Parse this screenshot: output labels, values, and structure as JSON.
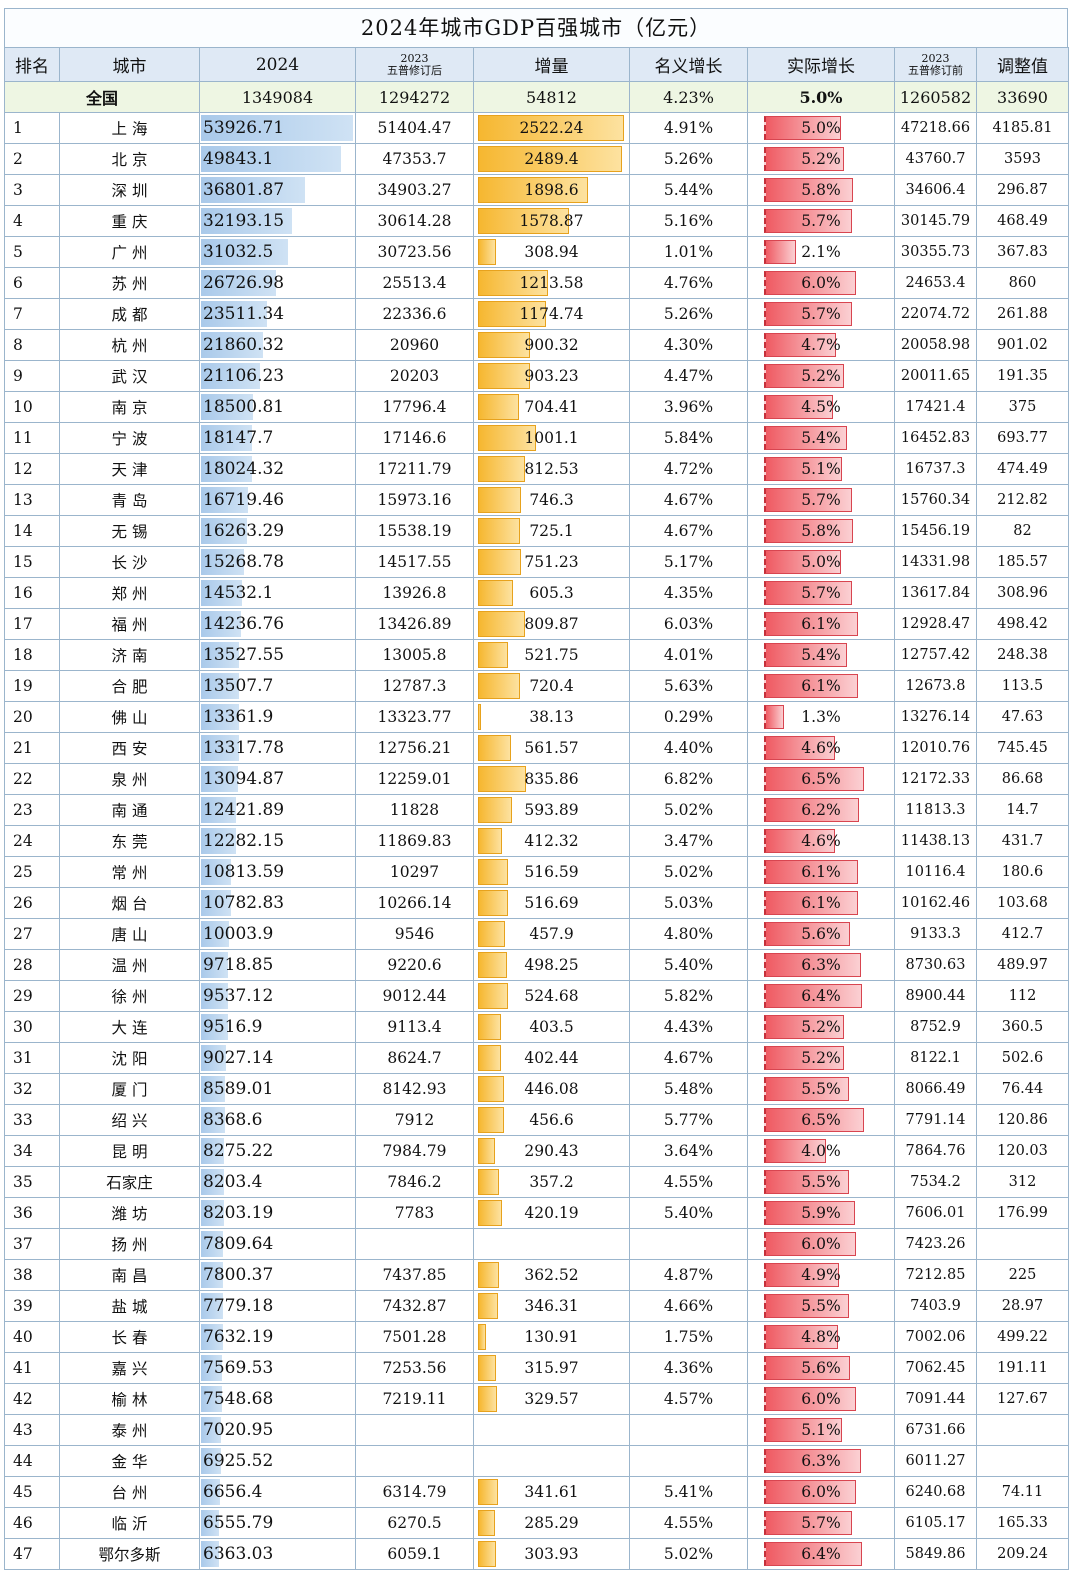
{
  "title": "2024年城市GDP百强城市（亿元）",
  "headers": {
    "rank": "排名",
    "city": "城市",
    "gdp2024": "2024",
    "gdp2023_year": "2023",
    "gdp2023_note": "五普修订后",
    "increase": "增量",
    "nominal": "名义增长",
    "real": "实际增长",
    "pre_year": "2023",
    "pre_note": "五普修订前",
    "adjust": "调整值"
  },
  "total": {
    "label": "全国",
    "gdp2024": "1349084",
    "gdp2023": "1294272",
    "increase": "54812",
    "nominal": "4.23%",
    "real": "5.0%",
    "pre": "1260582",
    "adjust": "33690"
  },
  "colors": {
    "header_bg": "#dfe9f5",
    "total_bg": "#eef6e3",
    "gdp_bar": "#a9c9ea",
    "inc_bar": "#f6b730",
    "real_bar": "#ef5a62",
    "grid": "#9bb5cc"
  },
  "rows": [
    {
      "rank": "1",
      "city": "上 海",
      "gdp2024": "53926.71",
      "gdp2023": "51404.47",
      "increase": "2522.24",
      "nominal": "4.91%",
      "real": "5.0%",
      "pre": "47218.66",
      "adjust": "4185.81"
    },
    {
      "rank": "2",
      "city": "北 京",
      "gdp2024": "49843.1",
      "gdp2023": "47353.7",
      "increase": "2489.4",
      "nominal": "5.26%",
      "real": "5.2%",
      "pre": "43760.7",
      "adjust": "3593"
    },
    {
      "rank": "3",
      "city": "深 圳",
      "gdp2024": "36801.87",
      "gdp2023": "34903.27",
      "increase": "1898.6",
      "nominal": "5.44%",
      "real": "5.8%",
      "pre": "34606.4",
      "adjust": "296.87"
    },
    {
      "rank": "4",
      "city": "重 庆",
      "gdp2024": "32193.15",
      "gdp2023": "30614.28",
      "increase": "1578.87",
      "nominal": "5.16%",
      "real": "5.7%",
      "pre": "30145.79",
      "adjust": "468.49"
    },
    {
      "rank": "5",
      "city": "广 州",
      "gdp2024": "31032.5",
      "gdp2023": "30723.56",
      "increase": "308.94",
      "nominal": "1.01%",
      "real": "2.1%",
      "pre": "30355.73",
      "adjust": "367.83"
    },
    {
      "rank": "6",
      "city": "苏 州",
      "gdp2024": "26726.98",
      "gdp2023": "25513.4",
      "increase": "1213.58",
      "nominal": "4.76%",
      "real": "6.0%",
      "pre": "24653.4",
      "adjust": "860"
    },
    {
      "rank": "7",
      "city": "成 都",
      "gdp2024": "23511.34",
      "gdp2023": "22336.6",
      "increase": "1174.74",
      "nominal": "5.26%",
      "real": "5.7%",
      "pre": "22074.72",
      "adjust": "261.88"
    },
    {
      "rank": "8",
      "city": "杭 州",
      "gdp2024": "21860.32",
      "gdp2023": "20960",
      "increase": "900.32",
      "nominal": "4.30%",
      "real": "4.7%",
      "pre": "20058.98",
      "adjust": "901.02"
    },
    {
      "rank": "9",
      "city": "武 汉",
      "gdp2024": "21106.23",
      "gdp2023": "20203",
      "increase": "903.23",
      "nominal": "4.47%",
      "real": "5.2%",
      "pre": "20011.65",
      "adjust": "191.35"
    },
    {
      "rank": "10",
      "city": "南 京",
      "gdp2024": "18500.81",
      "gdp2023": "17796.4",
      "increase": "704.41",
      "nominal": "3.96%",
      "real": "4.5%",
      "pre": "17421.4",
      "adjust": "375"
    },
    {
      "rank": "11",
      "city": "宁 波",
      "gdp2024": "18147.7",
      "gdp2023": "17146.6",
      "increase": "1001.1",
      "nominal": "5.84%",
      "real": "5.4%",
      "pre": "16452.83",
      "adjust": "693.77"
    },
    {
      "rank": "12",
      "city": "天 津",
      "gdp2024": "18024.32",
      "gdp2023": "17211.79",
      "increase": "812.53",
      "nominal": "4.72%",
      "real": "5.1%",
      "pre": "16737.3",
      "adjust": "474.49"
    },
    {
      "rank": "13",
      "city": "青 岛",
      "gdp2024": "16719.46",
      "gdp2023": "15973.16",
      "increase": "746.3",
      "nominal": "4.67%",
      "real": "5.7%",
      "pre": "15760.34",
      "adjust": "212.82"
    },
    {
      "rank": "14",
      "city": "无 锡",
      "gdp2024": "16263.29",
      "gdp2023": "15538.19",
      "increase": "725.1",
      "nominal": "4.67%",
      "real": "5.8%",
      "pre": "15456.19",
      "adjust": "82"
    },
    {
      "rank": "15",
      "city": "长 沙",
      "gdp2024": "15268.78",
      "gdp2023": "14517.55",
      "increase": "751.23",
      "nominal": "5.17%",
      "real": "5.0%",
      "pre": "14331.98",
      "adjust": "185.57"
    },
    {
      "rank": "16",
      "city": "郑 州",
      "gdp2024": "14532.1",
      "gdp2023": "13926.8",
      "increase": "605.3",
      "nominal": "4.35%",
      "real": "5.7%",
      "pre": "13617.84",
      "adjust": "308.96"
    },
    {
      "rank": "17",
      "city": "福 州",
      "gdp2024": "14236.76",
      "gdp2023": "13426.89",
      "increase": "809.87",
      "nominal": "6.03%",
      "real": "6.1%",
      "pre": "12928.47",
      "adjust": "498.42"
    },
    {
      "rank": "18",
      "city": "济 南",
      "gdp2024": "13527.55",
      "gdp2023": "13005.8",
      "increase": "521.75",
      "nominal": "4.01%",
      "real": "5.4%",
      "pre": "12757.42",
      "adjust": "248.38"
    },
    {
      "rank": "19",
      "city": "合 肥",
      "gdp2024": "13507.7",
      "gdp2023": "12787.3",
      "increase": "720.4",
      "nominal": "5.63%",
      "real": "6.1%",
      "pre": "12673.8",
      "adjust": "113.5"
    },
    {
      "rank": "20",
      "city": "佛 山",
      "gdp2024": "13361.9",
      "gdp2023": "13323.77",
      "increase": "38.13",
      "nominal": "0.29%",
      "real": "1.3%",
      "pre": "13276.14",
      "adjust": "47.63"
    },
    {
      "rank": "21",
      "city": "西 安",
      "gdp2024": "13317.78",
      "gdp2023": "12756.21",
      "increase": "561.57",
      "nominal": "4.40%",
      "real": "4.6%",
      "pre": "12010.76",
      "adjust": "745.45"
    },
    {
      "rank": "22",
      "city": "泉 州",
      "gdp2024": "13094.87",
      "gdp2023": "12259.01",
      "increase": "835.86",
      "nominal": "6.82%",
      "real": "6.5%",
      "pre": "12172.33",
      "adjust": "86.68"
    },
    {
      "rank": "23",
      "city": "南 通",
      "gdp2024": "12421.89",
      "gdp2023": "11828",
      "increase": "593.89",
      "nominal": "5.02%",
      "real": "6.2%",
      "pre": "11813.3",
      "adjust": "14.7"
    },
    {
      "rank": "24",
      "city": "东 莞",
      "gdp2024": "12282.15",
      "gdp2023": "11869.83",
      "increase": "412.32",
      "nominal": "3.47%",
      "real": "4.6%",
      "pre": "11438.13",
      "adjust": "431.7"
    },
    {
      "rank": "25",
      "city": "常 州",
      "gdp2024": "10813.59",
      "gdp2023": "10297",
      "increase": "516.59",
      "nominal": "5.02%",
      "real": "6.1%",
      "pre": "10116.4",
      "adjust": "180.6"
    },
    {
      "rank": "26",
      "city": "烟 台",
      "gdp2024": "10782.83",
      "gdp2023": "10266.14",
      "increase": "516.69",
      "nominal": "5.03%",
      "real": "6.1%",
      "pre": "10162.46",
      "adjust": "103.68"
    },
    {
      "rank": "27",
      "city": "唐 山",
      "gdp2024": "10003.9",
      "gdp2023": "9546",
      "increase": "457.9",
      "nominal": "4.80%",
      "real": "5.6%",
      "pre": "9133.3",
      "adjust": "412.7"
    },
    {
      "rank": "28",
      "city": "温 州",
      "gdp2024": "9718.85",
      "gdp2023": "9220.6",
      "increase": "498.25",
      "nominal": "5.40%",
      "real": "6.3%",
      "pre": "8730.63",
      "adjust": "489.97"
    },
    {
      "rank": "29",
      "city": "徐 州",
      "gdp2024": "9537.12",
      "gdp2023": "9012.44",
      "increase": "524.68",
      "nominal": "5.82%",
      "real": "6.4%",
      "pre": "8900.44",
      "adjust": "112"
    },
    {
      "rank": "30",
      "city": "大 连",
      "gdp2024": "9516.9",
      "gdp2023": "9113.4",
      "increase": "403.5",
      "nominal": "4.43%",
      "real": "5.2%",
      "pre": "8752.9",
      "adjust": "360.5"
    },
    {
      "rank": "31",
      "city": "沈 阳",
      "gdp2024": "9027.14",
      "gdp2023": "8624.7",
      "increase": "402.44",
      "nominal": "4.67%",
      "real": "5.2%",
      "pre": "8122.1",
      "adjust": "502.6"
    },
    {
      "rank": "32",
      "city": "厦 门",
      "gdp2024": "8589.01",
      "gdp2023": "8142.93",
      "increase": "446.08",
      "nominal": "5.48%",
      "real": "5.5%",
      "pre": "8066.49",
      "adjust": "76.44"
    },
    {
      "rank": "33",
      "city": "绍 兴",
      "gdp2024": "8368.6",
      "gdp2023": "7912",
      "increase": "456.6",
      "nominal": "5.77%",
      "real": "6.5%",
      "pre": "7791.14",
      "adjust": "120.86"
    },
    {
      "rank": "34",
      "city": "昆 明",
      "gdp2024": "8275.22",
      "gdp2023": "7984.79",
      "increase": "290.43",
      "nominal": "3.64%",
      "real": "4.0%",
      "pre": "7864.76",
      "adjust": "120.03"
    },
    {
      "rank": "35",
      "city": "石家庄",
      "gdp2024": "8203.4",
      "gdp2023": "7846.2",
      "increase": "357.2",
      "nominal": "4.55%",
      "real": "5.5%",
      "pre": "7534.2",
      "adjust": "312"
    },
    {
      "rank": "36",
      "city": "潍 坊",
      "gdp2024": "8203.19",
      "gdp2023": "7783",
      "increase": "420.19",
      "nominal": "5.40%",
      "real": "5.9%",
      "pre": "7606.01",
      "adjust": "176.99"
    },
    {
      "rank": "37",
      "city": "扬 州",
      "gdp2024": "7809.64",
      "gdp2023": "",
      "increase": "",
      "nominal": "",
      "real": "6.0%",
      "pre": "7423.26",
      "adjust": ""
    },
    {
      "rank": "38",
      "city": "南 昌",
      "gdp2024": "7800.37",
      "gdp2023": "7437.85",
      "increase": "362.52",
      "nominal": "4.87%",
      "real": "4.9%",
      "pre": "7212.85",
      "adjust": "225"
    },
    {
      "rank": "39",
      "city": "盐 城",
      "gdp2024": "7779.18",
      "gdp2023": "7432.87",
      "increase": "346.31",
      "nominal": "4.66%",
      "real": "5.5%",
      "pre": "7403.9",
      "adjust": "28.97"
    },
    {
      "rank": "40",
      "city": "长 春",
      "gdp2024": "7632.19",
      "gdp2023": "7501.28",
      "increase": "130.91",
      "nominal": "1.75%",
      "real": "4.8%",
      "pre": "7002.06",
      "adjust": "499.22"
    },
    {
      "rank": "41",
      "city": "嘉 兴",
      "gdp2024": "7569.53",
      "gdp2023": "7253.56",
      "increase": "315.97",
      "nominal": "4.36%",
      "real": "5.6%",
      "pre": "7062.45",
      "adjust": "191.11"
    },
    {
      "rank": "42",
      "city": "榆 林",
      "gdp2024": "7548.68",
      "gdp2023": "7219.11",
      "increase": "329.57",
      "nominal": "4.57%",
      "real": "6.0%",
      "pre": "7091.44",
      "adjust": "127.67"
    },
    {
      "rank": "43",
      "city": "泰 州",
      "gdp2024": "7020.95",
      "gdp2023": "",
      "increase": "",
      "nominal": "",
      "real": "5.1%",
      "pre": "6731.66",
      "adjust": ""
    },
    {
      "rank": "44",
      "city": "金 华",
      "gdp2024": "6925.52",
      "gdp2023": "",
      "increase": "",
      "nominal": "",
      "real": "6.3%",
      "pre": "6011.27",
      "adjust": ""
    },
    {
      "rank": "45",
      "city": "台 州",
      "gdp2024": "6656.4",
      "gdp2023": "6314.79",
      "increase": "341.61",
      "nominal": "5.41%",
      "real": "6.0%",
      "pre": "6240.68",
      "adjust": "74.11"
    },
    {
      "rank": "46",
      "city": "临 沂",
      "gdp2024": "6555.79",
      "gdp2023": "6270.5",
      "increase": "285.29",
      "nominal": "4.55%",
      "real": "5.7%",
      "pre": "6105.17",
      "adjust": "165.33"
    },
    {
      "rank": "47",
      "city": "鄂尔多斯",
      "gdp2024": "6363.03",
      "gdp2023": "6059.1",
      "increase": "303.93",
      "nominal": "5.02%",
      "real": "6.4%",
      "pre": "5849.86",
      "adjust": "209.24"
    }
  ]
}
